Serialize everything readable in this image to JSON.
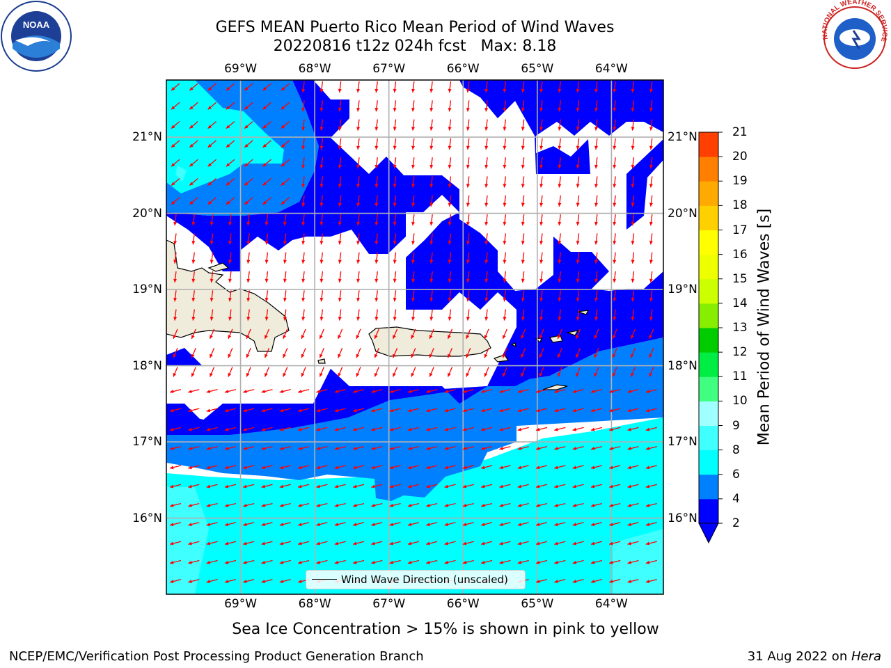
{
  "title": {
    "line1": "GEFS MEAN Puerto Rico Mean Period of Wind Waves",
    "line2": "20220816 t12z 024h fcst   Max: 8.18"
  },
  "map": {
    "longitude_labels": [
      "69°W",
      "68°W",
      "67°W",
      "66°W",
      "65°W",
      "64°W"
    ],
    "latitude_labels": [
      "21°N",
      "20°N",
      "19°N",
      "18°N",
      "17°N",
      "16°N"
    ],
    "longitudes": [
      -69,
      -68,
      -67,
      -66,
      -65,
      -64
    ],
    "latitudes": [
      21,
      20,
      19,
      18,
      17,
      16
    ],
    "extent": {
      "lon_min": -70.0,
      "lon_max": -63.3,
      "lat_min": 15.0,
      "lat_max": 21.75
    },
    "gridlines": true,
    "land_color": "#efecdc",
    "arrow_color": "#ff0000",
    "legend_text": "Wind Wave Direction (unscaled)"
  },
  "colorbar": {
    "label": "Mean Period of Wind Waves [s]",
    "ticks": [
      "2",
      "4",
      "6",
      "8",
      "9",
      "10",
      "11",
      "12",
      "13",
      "14",
      "15",
      "16",
      "17",
      "18",
      "19",
      "20",
      "21"
    ],
    "colors": [
      "#0000ff",
      "#0080ff",
      "#00ffff",
      "#40ffff",
      "#a0ffff",
      "#40ff80",
      "#00ee44",
      "#00cc00",
      "#88ee00",
      "#ccff00",
      "#eeff00",
      "#ffff00",
      "#ffd000",
      "#ffaa00",
      "#ff8000",
      "#ff4000",
      "#ff0000"
    ],
    "under_color": "#0000ff"
  },
  "footer": {
    "ice_note": "Sea Ice Concentration > 15% is shown in pink to yellow",
    "branch": "NCEP/EMC/Verification Post Processing Product Generation Branch",
    "date": "31 Aug 2022 on ",
    "date_system": "Hera"
  },
  "logos": {
    "noaa": "NOAA",
    "nws": "NATIONAL WEATHER SERVICE"
  }
}
